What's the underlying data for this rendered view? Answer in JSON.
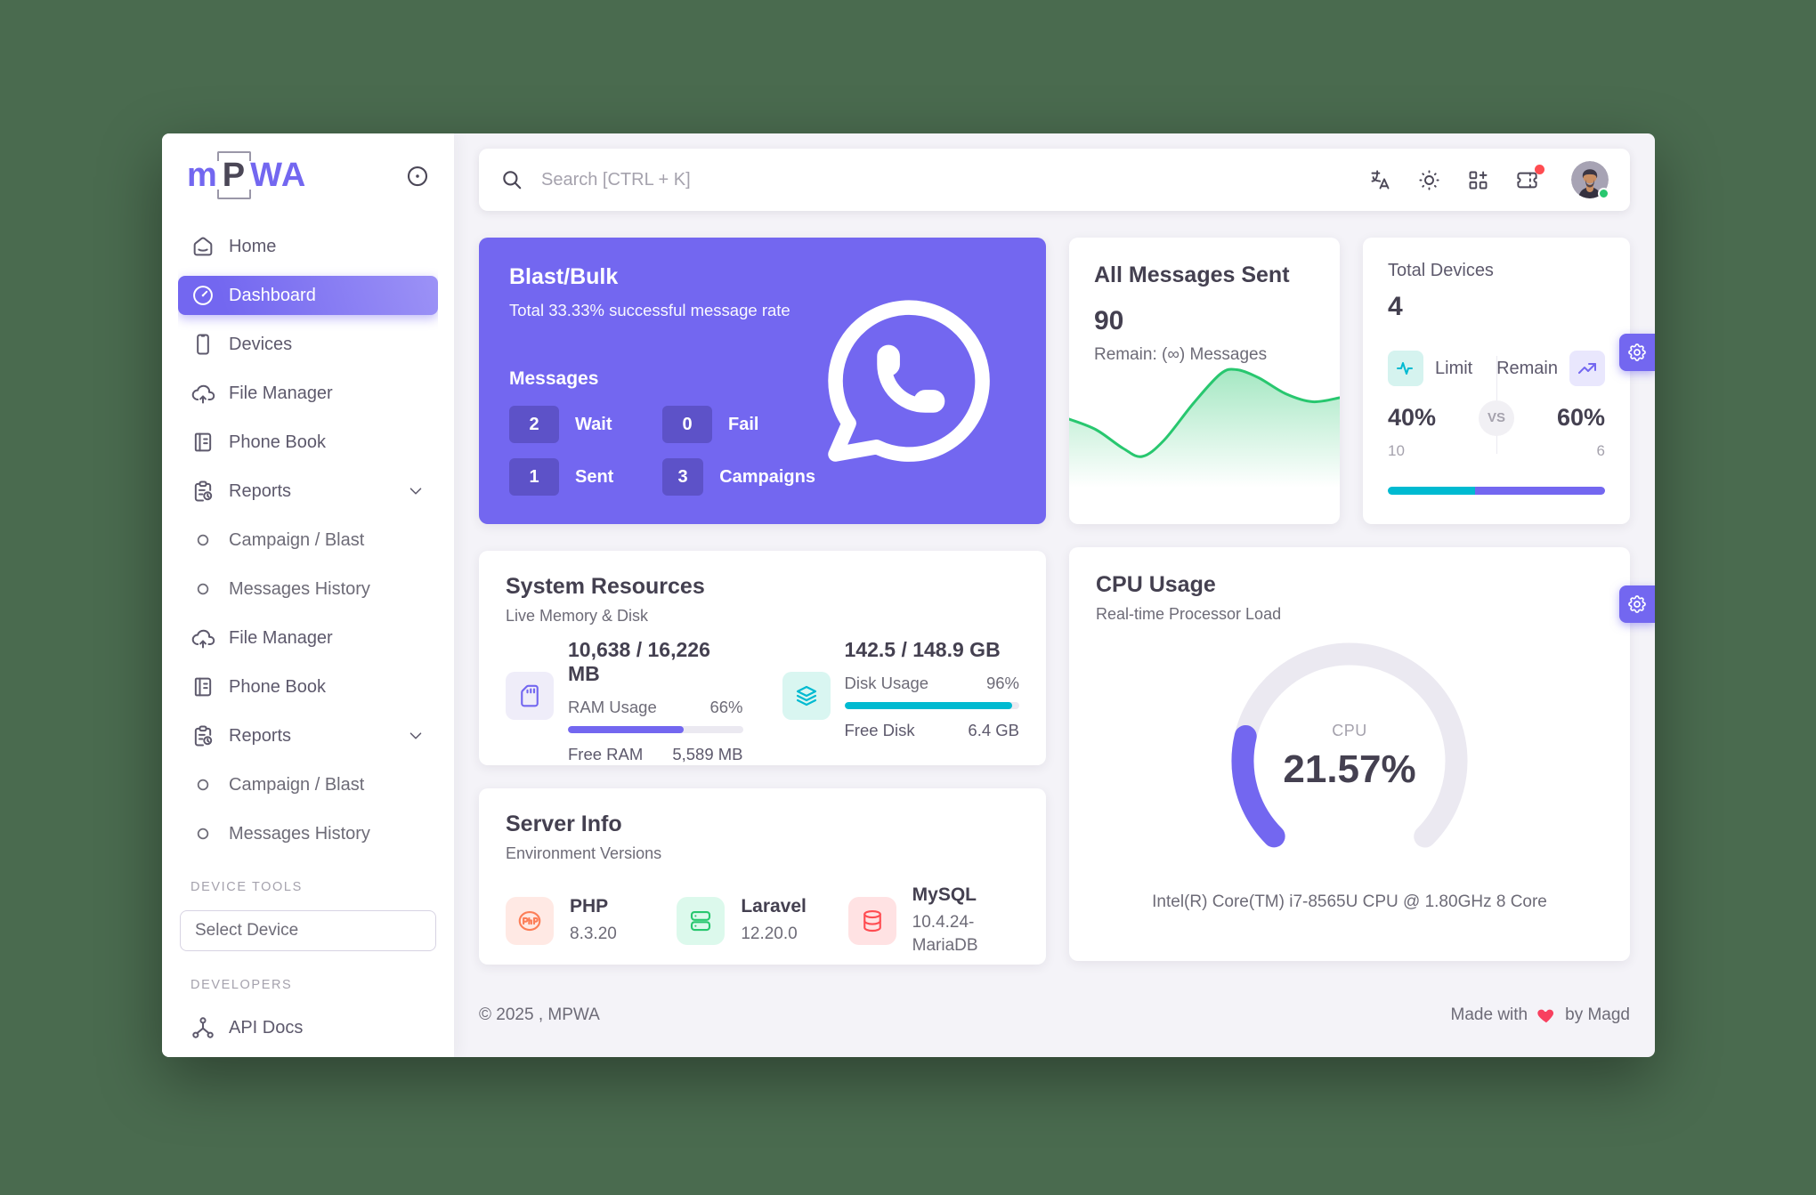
{
  "colors": {
    "primary": "#7367F0",
    "success": "#28C76F",
    "info": "#00BAD1",
    "danger": "#FF4C51",
    "heading": "#444050",
    "body": "#6D6B77",
    "muted": "#A5A2AD",
    "track": "#EBE9F1",
    "bg": "#F4F3F8",
    "desktop": "#4A6B4F",
    "heart": "#F8405F"
  },
  "sidebar": {
    "logo": {
      "part1": "m",
      "part2": "P",
      "part3": "WA"
    },
    "items": [
      {
        "type": "item",
        "icon": "home",
        "label": "Home"
      },
      {
        "type": "item",
        "icon": "dashboard",
        "label": "Dashboard",
        "active": true
      },
      {
        "type": "item",
        "icon": "smartphone",
        "label": "Devices"
      },
      {
        "type": "item",
        "icon": "cloud-upload",
        "label": "File Manager"
      },
      {
        "type": "item",
        "icon": "phone-book",
        "label": "Phone Book"
      },
      {
        "type": "item",
        "icon": "report",
        "label": "Reports",
        "chevron": true
      },
      {
        "type": "sub",
        "label": "Campaign / Blast"
      },
      {
        "type": "sub",
        "label": "Messages History"
      },
      {
        "type": "item",
        "icon": "cloud-upload",
        "label": "File Manager"
      },
      {
        "type": "item",
        "icon": "phone-book",
        "label": "Phone Book"
      },
      {
        "type": "item",
        "icon": "report",
        "label": "Reports",
        "chevron": true
      },
      {
        "type": "sub",
        "label": "Campaign / Blast"
      },
      {
        "type": "sub",
        "label": "Messages History"
      },
      {
        "type": "section",
        "label": "DEVICE TOOLS"
      },
      {
        "type": "select",
        "label": "Select Device"
      },
      {
        "type": "section",
        "label": "DEVELOPERS"
      },
      {
        "type": "item",
        "icon": "api",
        "label": "API Docs"
      }
    ]
  },
  "topbar": {
    "search_placeholder": "Search [CTRL + K]"
  },
  "cards": {
    "blast": {
      "title": "Blast/Bulk",
      "subtitle": "Total 33.33% successful message rate",
      "messages_label": "Messages",
      "stats": [
        {
          "value": "2",
          "label": "Wait"
        },
        {
          "value": "0",
          "label": "Fail"
        },
        {
          "value": "1",
          "label": "Sent"
        },
        {
          "value": "3",
          "label": "Campaigns"
        }
      ]
    },
    "messages_sent": {
      "title": "All Messages Sent",
      "value": "90",
      "remain": "Remain: (∞) Messages"
    },
    "devices": {
      "title": "Total Devices",
      "value": "4",
      "limit_label": "Limit",
      "remain_label": "Remain",
      "vs": "VS",
      "limit_pct": "40%",
      "remain_pct": "60%",
      "limit_count": "10",
      "remain_count": "6"
    },
    "system": {
      "title": "System Resources",
      "subtitle": "Live Memory & Disk",
      "ram": {
        "value": "10,638 / 16,226 MB",
        "usage_label": "RAM Usage",
        "usage_pct": "66%",
        "free_label": "Free RAM",
        "free_value": "5,589 MB"
      },
      "disk": {
        "value": "142.5 / 148.9 GB",
        "usage_label": "Disk Usage",
        "usage_pct": "96%",
        "free_label": "Free Disk",
        "free_value": "6.4 GB"
      }
    },
    "server": {
      "title": "Server Info",
      "subtitle": "Environment Versions",
      "items": [
        {
          "name": "PHP",
          "version": "8.3.20"
        },
        {
          "name": "Laravel",
          "version": "12.20.0"
        },
        {
          "name": "MySQL",
          "version": "10.4.24-MariaDB"
        }
      ]
    },
    "cpu": {
      "title": "CPU Usage",
      "subtitle": "Real-time Processor Load",
      "gauge_label": "CPU",
      "gauge_value": "21.57%",
      "processor": "Intel(R) Core(TM) i7-8565U CPU @ 1.80GHz 8 Core"
    }
  },
  "footer": {
    "left": "© 2025 , MPWA",
    "right_pre": "Made with",
    "right_post": "by Magd"
  },
  "chart_data": [
    {
      "id": "messages-sparkline",
      "type": "area",
      "title": "All Messages Sent trend",
      "axes": "none",
      "color": "#28C76F",
      "x_pct": [
        0,
        10,
        20,
        27,
        35,
        46,
        56,
        62,
        70,
        80,
        90,
        100
      ],
      "y_pct_from_top": [
        44,
        52,
        66,
        72,
        60,
        32,
        10,
        7,
        13,
        25,
        31,
        28
      ]
    },
    {
      "id": "devices-split-bar",
      "type": "bar",
      "categories": [
        "Limit",
        "Remain"
      ],
      "values_pct": [
        40,
        60
      ],
      "counts": [
        10,
        6
      ],
      "colors": [
        "#00BAD1",
        "#7367F0"
      ]
    },
    {
      "id": "ram-usage-bar",
      "type": "bar",
      "label": "RAM Usage",
      "value_pct": 66,
      "color": "#7367F0"
    },
    {
      "id": "disk-usage-bar",
      "type": "bar",
      "label": "Disk Usage",
      "value_pct": 96,
      "color": "#00BAD1"
    },
    {
      "id": "cpu-gauge",
      "type": "gauge",
      "label": "CPU",
      "value_pct": 21.57,
      "sweep_deg": 270,
      "color": "#7367F0",
      "track_color": "#EBE9F1"
    }
  ]
}
